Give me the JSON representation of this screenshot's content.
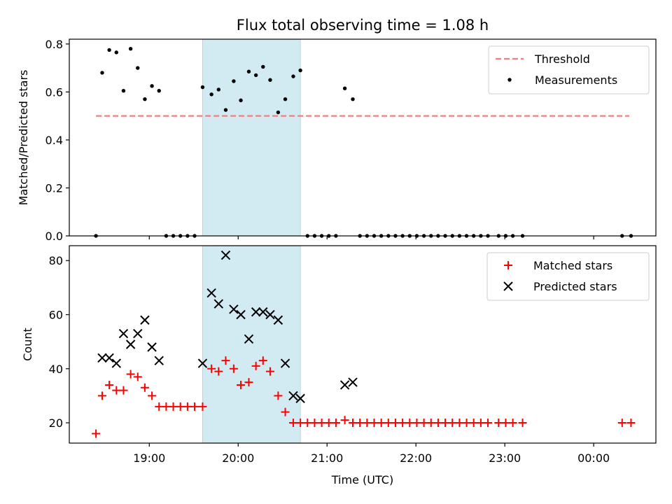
{
  "title": "Flux total observing time = 1.08 h",
  "colors": {
    "threshold": "#f08080",
    "matched": "#ff0000",
    "predicted": "#000000",
    "measurement": "#000000",
    "highlight": "#add8e6"
  },
  "chart_data": [
    {
      "type": "scatter",
      "ylabel": "Matched/Predicted stars",
      "ylim": [
        0,
        0.82
      ],
      "yticks": [
        0.0,
        0.2,
        0.4,
        0.6,
        0.8
      ],
      "ytick_labels": [
        "0.0",
        "0.2",
        "0.4",
        "0.6",
        "0.8"
      ],
      "xlim": [
        18.1,
        24.7
      ],
      "highlight_span": [
        19.6,
        20.7
      ],
      "legend": {
        "placement": "top-right",
        "entries": [
          {
            "label": "Threshold",
            "kind": "dashed-line"
          },
          {
            "label": "Measurements",
            "kind": "dot"
          }
        ]
      },
      "threshold": {
        "y": 0.5,
        "x_start": 18.4,
        "x_end": 24.4
      },
      "series": [
        {
          "name": "Measurements",
          "points": [
            [
              18.4,
              0.0
            ],
            [
              18.47,
              0.68
            ],
            [
              18.55,
              0.775
            ],
            [
              18.63,
              0.765
            ],
            [
              18.71,
              0.605
            ],
            [
              18.79,
              0.78
            ],
            [
              18.87,
              0.7
            ],
            [
              18.95,
              0.57
            ],
            [
              19.03,
              0.625
            ],
            [
              19.11,
              0.605
            ],
            [
              19.19,
              0.0
            ],
            [
              19.27,
              0.0
            ],
            [
              19.35,
              0.0
            ],
            [
              19.43,
              0.0
            ],
            [
              19.51,
              0.0
            ],
            [
              19.6,
              0.62
            ],
            [
              19.7,
              0.59
            ],
            [
              19.78,
              0.61
            ],
            [
              19.86,
              0.525
            ],
            [
              19.95,
              0.645
            ],
            [
              20.03,
              0.565
            ],
            [
              20.12,
              0.685
            ],
            [
              20.2,
              0.67
            ],
            [
              20.28,
              0.705
            ],
            [
              20.36,
              0.65
            ],
            [
              20.45,
              0.515
            ],
            [
              20.53,
              0.57
            ],
            [
              20.62,
              0.665
            ],
            [
              20.7,
              0.69
            ],
            [
              20.78,
              0.0
            ],
            [
              20.86,
              0.0
            ],
            [
              20.94,
              0.0
            ],
            [
              21.02,
              0.0
            ],
            [
              21.1,
              0.0
            ],
            [
              21.2,
              0.615
            ],
            [
              21.29,
              0.57
            ],
            [
              21.37,
              0.0
            ],
            [
              21.45,
              0.0
            ],
            [
              21.53,
              0.0
            ],
            [
              21.61,
              0.0
            ],
            [
              21.69,
              0.0
            ],
            [
              21.77,
              0.0
            ],
            [
              21.85,
              0.0
            ],
            [
              21.93,
              0.0
            ],
            [
              22.01,
              0.0
            ],
            [
              22.09,
              0.0
            ],
            [
              22.17,
              0.0
            ],
            [
              22.25,
              0.0
            ],
            [
              22.33,
              0.0
            ],
            [
              22.41,
              0.0
            ],
            [
              22.49,
              0.0
            ],
            [
              22.57,
              0.0
            ],
            [
              22.65,
              0.0
            ],
            [
              22.73,
              0.0
            ],
            [
              22.81,
              0.0
            ],
            [
              22.93,
              0.0
            ],
            [
              23.01,
              0.0
            ],
            [
              23.09,
              0.0
            ],
            [
              23.2,
              0.0
            ],
            [
              24.32,
              0.0
            ],
            [
              24.42,
              0.0
            ]
          ]
        }
      ]
    },
    {
      "type": "scatter",
      "ylabel": "Count",
      "xlabel": "Time (UTC)",
      "ylim": [
        12.5,
        85.5
      ],
      "yticks": [
        20,
        40,
        60,
        80
      ],
      "ytick_labels": [
        "20",
        "40",
        "60",
        "80"
      ],
      "xlim": [
        18.1,
        24.7
      ],
      "xticks": [
        19,
        20,
        21,
        22,
        23,
        24
      ],
      "xtick_labels": [
        "19:00",
        "20:00",
        "21:00",
        "22:00",
        "23:00",
        "00:00"
      ],
      "highlight_span": [
        19.6,
        20.7
      ],
      "legend": {
        "placement": "top-right",
        "entries": [
          {
            "label": "Matched stars",
            "kind": "plus"
          },
          {
            "label": "Predicted stars",
            "kind": "cross"
          }
        ]
      },
      "series": [
        {
          "name": "Matched stars",
          "marker": "plus",
          "points": [
            [
              18.4,
              16
            ],
            [
              18.47,
              30
            ],
            [
              18.55,
              34
            ],
            [
              18.63,
              32
            ],
            [
              18.71,
              32
            ],
            [
              18.79,
              38
            ],
            [
              18.87,
              37
            ],
            [
              18.95,
              33
            ],
            [
              19.03,
              30
            ],
            [
              19.11,
              26
            ],
            [
              19.19,
              26
            ],
            [
              19.27,
              26
            ],
            [
              19.35,
              26
            ],
            [
              19.43,
              26
            ],
            [
              19.51,
              26
            ],
            [
              19.6,
              26
            ],
            [
              19.7,
              40
            ],
            [
              19.78,
              39
            ],
            [
              19.86,
              43
            ],
            [
              19.95,
              40
            ],
            [
              20.03,
              34
            ],
            [
              20.12,
              35
            ],
            [
              20.2,
              41
            ],
            [
              20.28,
              43
            ],
            [
              20.36,
              39
            ],
            [
              20.45,
              30
            ],
            [
              20.53,
              24
            ],
            [
              20.62,
              20
            ],
            [
              20.7,
              20
            ],
            [
              20.78,
              20
            ],
            [
              20.86,
              20
            ],
            [
              20.94,
              20
            ],
            [
              21.02,
              20
            ],
            [
              21.1,
              20
            ],
            [
              21.2,
              21
            ],
            [
              21.29,
              20
            ],
            [
              21.37,
              20
            ],
            [
              21.45,
              20
            ],
            [
              21.53,
              20
            ],
            [
              21.61,
              20
            ],
            [
              21.69,
              20
            ],
            [
              21.77,
              20
            ],
            [
              21.85,
              20
            ],
            [
              21.93,
              20
            ],
            [
              22.01,
              20
            ],
            [
              22.09,
              20
            ],
            [
              22.17,
              20
            ],
            [
              22.25,
              20
            ],
            [
              22.33,
              20
            ],
            [
              22.41,
              20
            ],
            [
              22.49,
              20
            ],
            [
              22.57,
              20
            ],
            [
              22.65,
              20
            ],
            [
              22.73,
              20
            ],
            [
              22.81,
              20
            ],
            [
              22.93,
              20
            ],
            [
              23.01,
              20
            ],
            [
              23.09,
              20
            ],
            [
              23.2,
              20
            ],
            [
              24.32,
              20
            ],
            [
              24.42,
              20
            ]
          ]
        },
        {
          "name": "Predicted stars",
          "marker": "cross",
          "points": [
            [
              18.47,
              44
            ],
            [
              18.55,
              44
            ],
            [
              18.63,
              42
            ],
            [
              18.71,
              53
            ],
            [
              18.79,
              49
            ],
            [
              18.87,
              53
            ],
            [
              18.95,
              58
            ],
            [
              19.03,
              48
            ],
            [
              19.11,
              43
            ],
            [
              19.6,
              42
            ],
            [
              19.7,
              68
            ],
            [
              19.78,
              64
            ],
            [
              19.86,
              82
            ],
            [
              19.95,
              62
            ],
            [
              20.03,
              60
            ],
            [
              20.12,
              51
            ],
            [
              20.2,
              61
            ],
            [
              20.28,
              61
            ],
            [
              20.36,
              60
            ],
            [
              20.45,
              58
            ],
            [
              20.53,
              42
            ],
            [
              20.62,
              30
            ],
            [
              20.7,
              29
            ],
            [
              21.2,
              34
            ],
            [
              21.29,
              35
            ]
          ]
        }
      ]
    }
  ]
}
